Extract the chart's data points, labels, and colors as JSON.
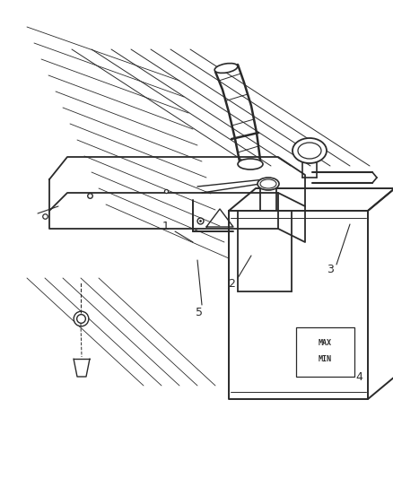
{
  "bg_color": "#f0f0f0",
  "line_color": "#2a2a2a",
  "label_color": "#2a2a2a",
  "figsize": [
    4.38,
    5.33
  ],
  "dpi": 100,
  "img_bg": "#f0f0f0"
}
